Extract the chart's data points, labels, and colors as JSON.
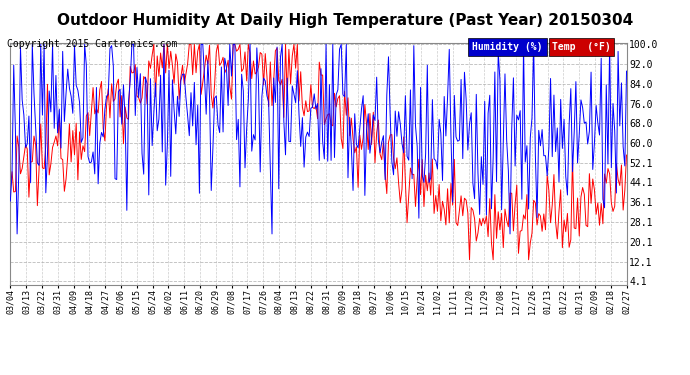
{
  "title": "Outdoor Humidity At Daily High Temperature (Past Year) 20150304",
  "copyright": "Copyright 2015 Cartronics.com",
  "yticks": [
    4.1,
    12.1,
    20.1,
    28.1,
    36.1,
    44.1,
    52.1,
    60.0,
    68.0,
    76.0,
    84.0,
    92.0,
    100.0
  ],
  "xtick_labels": [
    "03/04",
    "03/13",
    "03/22",
    "03/31",
    "04/09",
    "04/18",
    "04/27",
    "05/06",
    "05/15",
    "05/24",
    "06/02",
    "06/11",
    "06/20",
    "06/29",
    "07/08",
    "07/17",
    "07/26",
    "08/04",
    "08/13",
    "08/22",
    "08/31",
    "09/09",
    "09/18",
    "09/27",
    "10/06",
    "10/15",
    "10/24",
    "11/02",
    "11/11",
    "11/20",
    "11/29",
    "12/08",
    "12/17",
    "12/26",
    "01/13",
    "01/22",
    "01/31",
    "02/09",
    "02/18",
    "02/27"
  ],
  "humidity_color": "#0000ff",
  "temp_color": "#ff0000",
  "dark_line_color": "#000080",
  "background_color": "#ffffff",
  "grid_color": "#aaaaaa",
  "title_fontsize": 11,
  "copyright_fontsize": 7,
  "legend_humidity_label": "Humidity (%)",
  "legend_temp_label": "Temp  (°F)",
  "legend_humidity_bg": "#0000cc",
  "legend_temp_bg": "#cc0000",
  "ymin": 4.1,
  "ymax": 100.0
}
